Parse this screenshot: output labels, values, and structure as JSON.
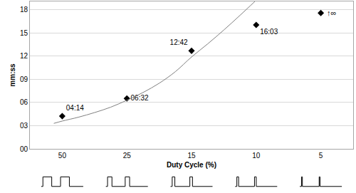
{
  "chart_data": {
    "type": "scatter",
    "categories": [
      "50",
      "25",
      "15",
      "10",
      "5"
    ],
    "x_label": "Duty Cycle (%)",
    "y_label": "mm:ss",
    "ylim": [
      0,
      19.1
    ],
    "yticks": [
      {
        "value": 0,
        "label": "00"
      },
      {
        "value": 3,
        "label": "03"
      },
      {
        "value": 6,
        "label": "06"
      },
      {
        "value": 9,
        "label": "09"
      },
      {
        "value": 12,
        "label": "12"
      },
      {
        "value": 15,
        "label": "15"
      },
      {
        "value": 18,
        "label": "18"
      }
    ],
    "grid": true,
    "series": [
      {
        "type": "scatter",
        "marker": "diamond",
        "color": "#000000",
        "values": [
          4.233,
          6.533,
          12.7,
          16.05,
          17.6
        ],
        "value_labels": [
          "04:14",
          "06:32",
          "12:42",
          "16:03",
          null
        ],
        "data_labels": true
      },
      {
        "type": "line",
        "color": "#808080",
        "line_style": "solid",
        "x": [
          -0.13,
          0,
          0.25,
          0.5,
          0.75,
          1,
          1.25,
          1.5,
          1.75,
          2,
          2.25,
          2.5,
          2.75,
          2.98
        ],
        "values": [
          3.3,
          3.6,
          4.1,
          4.7,
          5.4,
          6.3,
          7.3,
          8.5,
          10.0,
          11.9,
          13.6,
          15.4,
          17.3,
          19.1
        ]
      }
    ],
    "annotations": [
      {
        "text": "↑∞",
        "category": "5"
      }
    ]
  }
}
